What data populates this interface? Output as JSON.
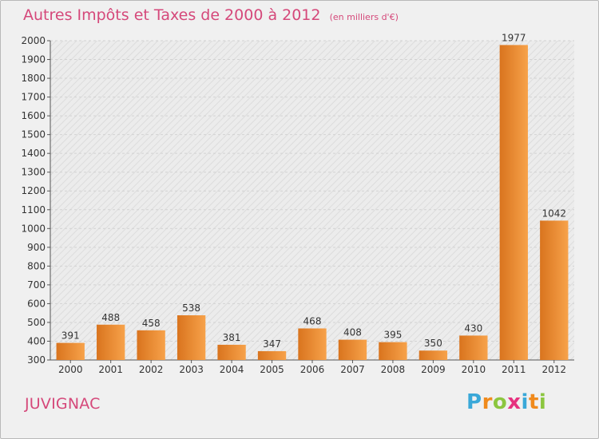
{
  "chart_data": {
    "type": "bar",
    "title": "Autres Impôts et Taxes de 2000 à 2012",
    "unit_label": "(en milliers d'€)",
    "categories": [
      "2000",
      "2001",
      "2002",
      "2003",
      "2004",
      "2005",
      "2006",
      "2007",
      "2008",
      "2009",
      "2010",
      "2011",
      "2012"
    ],
    "values": [
      391,
      488,
      458,
      538,
      381,
      347,
      468,
      408,
      395,
      350,
      430,
      1977,
      1042
    ],
    "ylim": [
      300,
      2000
    ],
    "ytick_step": 100,
    "grid": true,
    "bar_color_light": "#f7a24a",
    "bar_color_dark": "#d9741e"
  },
  "location": "JUVIGNAC",
  "brand": {
    "letters": [
      "P",
      "r",
      "o",
      "x",
      "i",
      "t",
      "i"
    ],
    "colors": [
      "#3aa8d8",
      "#f08a1c",
      "#8cc63f",
      "#e6327f",
      "#3aa8d8",
      "#f08a1c",
      "#8cc63f"
    ]
  }
}
